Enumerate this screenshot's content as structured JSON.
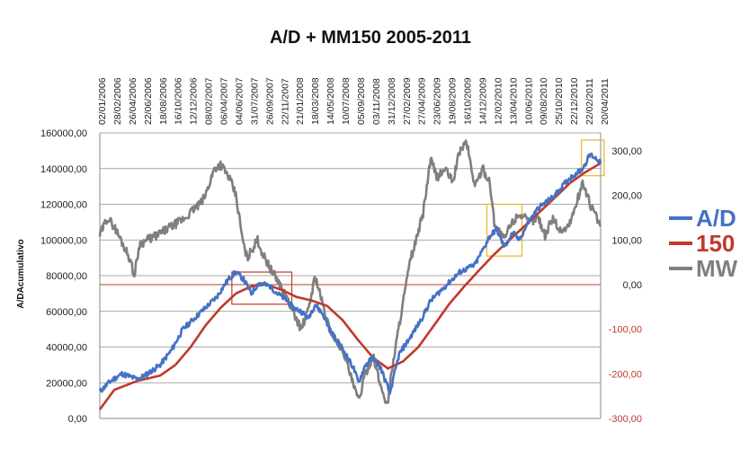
{
  "chart_data": {
    "type": "line",
    "title": "A/D + MM150 2005-2011",
    "ylabel": "A/DAcumulativo",
    "ylim": [
      0,
      160000
    ],
    "y2lim": [
      -300,
      340
    ],
    "yticks": [
      "0,00",
      "20000,00",
      "40000,00",
      "60000,00",
      "80000,00",
      "100000,00",
      "120000,00",
      "140000,00",
      "160000,00"
    ],
    "y2ticks": [
      "-300,00",
      "-200,00",
      "-100,00",
      "0,00",
      "100,00",
      "200,00",
      "300,00"
    ],
    "y2tick_values": [
      -300,
      -200,
      -100,
      0,
      100,
      200,
      300
    ],
    "x_start": "2006-01-02",
    "x_end": "2011-07-01",
    "xticks": [
      "02/01/2006",
      "28/02/2006",
      "26/04/2006",
      "22/06/2006",
      "18/08/2006",
      "16/10/2006",
      "12/12/2006",
      "08/02/2007",
      "06/04/2007",
      "04/06/2007",
      "31/07/2007",
      "26/09/2007",
      "22/11/2007",
      "21/01/2008",
      "18/03/2008",
      "14/05/2008",
      "10/07/2008",
      "05/09/2008",
      "03/11/2008",
      "31/12/2008",
      "27/02/2009",
      "27/04/2009",
      "23/06/2009",
      "19/08/2009",
      "16/10/2009",
      "14/12/2009",
      "12/02/2010",
      "13/04/2010",
      "10/06/2010",
      "09/08/2010",
      "25/10/2010",
      "22/12/2010",
      "22/02/2011",
      "20/04/2011"
    ],
    "grid": true,
    "legend_position": "right",
    "series": [
      {
        "name": "A/D",
        "axis": "left",
        "color": "#4472c4",
        "points": [
          [
            "2006-01-02",
            15000
          ],
          [
            "2006-02-15",
            21000
          ],
          [
            "2006-04-01",
            25000
          ],
          [
            "2006-06-01",
            22000
          ],
          [
            "2006-07-01",
            24000
          ],
          [
            "2006-09-01",
            30000
          ],
          [
            "2006-10-15",
            38000
          ],
          [
            "2006-12-01",
            50000
          ],
          [
            "2007-01-15",
            56000
          ],
          [
            "2007-03-01",
            62000
          ],
          [
            "2007-04-15",
            68000
          ],
          [
            "2007-06-01",
            78000
          ],
          [
            "2007-07-01",
            82000
          ],
          [
            "2007-08-01",
            78000
          ],
          [
            "2007-09-01",
            70000
          ],
          [
            "2007-10-01",
            76000
          ],
          [
            "2007-11-15",
            74000
          ],
          [
            "2007-12-15",
            70000
          ],
          [
            "2008-01-21",
            66000
          ],
          [
            "2008-02-15",
            62000
          ],
          [
            "2008-03-18",
            60000
          ],
          [
            "2008-04-15",
            56000
          ],
          [
            "2008-05-14",
            64000
          ],
          [
            "2008-06-15",
            58000
          ],
          [
            "2008-07-10",
            50000
          ],
          [
            "2008-08-15",
            42000
          ],
          [
            "2008-09-05",
            38000
          ],
          [
            "2008-10-15",
            28000
          ],
          [
            "2008-11-03",
            20000
          ],
          [
            "2008-12-01",
            30000
          ],
          [
            "2008-12-31",
            34000
          ],
          [
            "2009-02-01",
            28000
          ],
          [
            "2009-03-09",
            14000
          ],
          [
            "2009-04-15",
            36000
          ],
          [
            "2009-06-01",
            46000
          ],
          [
            "2009-07-15",
            56000
          ],
          [
            "2009-08-19",
            66000
          ],
          [
            "2009-10-16",
            74000
          ],
          [
            "2009-12-14",
            82000
          ],
          [
            "2010-02-12",
            86000
          ],
          [
            "2010-04-13",
            102000
          ],
          [
            "2010-05-10",
            106000
          ],
          [
            "2010-06-10",
            96000
          ],
          [
            "2010-07-15",
            104000
          ],
          [
            "2010-08-09",
            100000
          ],
          [
            "2010-09-15",
            110000
          ],
          [
            "2010-10-25",
            118000
          ],
          [
            "2010-12-22",
            124000
          ],
          [
            "2011-02-22",
            134000
          ],
          [
            "2011-04-20",
            140000
          ],
          [
            "2011-05-20",
            148000
          ],
          [
            "2011-06-20",
            145000
          ],
          [
            "2011-07-01",
            143000
          ]
        ]
      },
      {
        "name": "150",
        "axis": "left",
        "color": "#c0392b",
        "points": [
          [
            "2006-01-02",
            5000
          ],
          [
            "2006-03-01",
            16000
          ],
          [
            "2006-06-01",
            21000
          ],
          [
            "2006-09-01",
            24000
          ],
          [
            "2006-11-01",
            30000
          ],
          [
            "2007-01-01",
            40000
          ],
          [
            "2007-03-01",
            52000
          ],
          [
            "2007-05-01",
            62000
          ],
          [
            "2007-07-01",
            70000
          ],
          [
            "2007-09-01",
            74000
          ],
          [
            "2007-11-01",
            75000
          ],
          [
            "2008-01-01",
            72000
          ],
          [
            "2008-03-01",
            68000
          ],
          [
            "2008-05-01",
            66000
          ],
          [
            "2008-07-01",
            63000
          ],
          [
            "2008-09-01",
            55000
          ],
          [
            "2008-11-01",
            44000
          ],
          [
            "2009-01-01",
            34000
          ],
          [
            "2009-03-01",
            28000
          ],
          [
            "2009-05-01",
            32000
          ],
          [
            "2009-07-01",
            40000
          ],
          [
            "2009-09-01",
            52000
          ],
          [
            "2009-11-01",
            64000
          ],
          [
            "2010-01-01",
            74000
          ],
          [
            "2010-03-01",
            83000
          ],
          [
            "2010-05-01",
            92000
          ],
          [
            "2010-07-01",
            100000
          ],
          [
            "2010-09-01",
            108000
          ],
          [
            "2010-11-01",
            116000
          ],
          [
            "2011-01-01",
            124000
          ],
          [
            "2011-03-01",
            132000
          ],
          [
            "2011-05-01",
            138000
          ],
          [
            "2011-07-01",
            143000
          ]
        ]
      },
      {
        "name": "MW",
        "axis": "right",
        "color": "#7f7f7f",
        "points": [
          [
            "2006-01-02",
            110
          ],
          [
            "2006-02-01",
            150
          ],
          [
            "2006-03-01",
            130
          ],
          [
            "2006-04-01",
            95
          ],
          [
            "2006-05-01",
            60
          ],
          [
            "2006-05-20",
            20
          ],
          [
            "2006-06-10",
            90
          ],
          [
            "2006-07-10",
            100
          ],
          [
            "2006-08-18",
            110
          ],
          [
            "2006-10-16",
            130
          ],
          [
            "2006-12-12",
            150
          ],
          [
            "2007-01-15",
            170
          ],
          [
            "2007-02-08",
            180
          ],
          [
            "2007-03-01",
            200
          ],
          [
            "2007-04-06",
            260
          ],
          [
            "2007-05-01",
            270
          ],
          [
            "2007-06-04",
            240
          ],
          [
            "2007-07-01",
            200
          ],
          [
            "2007-07-31",
            90
          ],
          [
            "2007-08-15",
            60
          ],
          [
            "2007-09-26",
            100
          ],
          [
            "2007-10-15",
            70
          ],
          [
            "2007-11-22",
            30
          ],
          [
            "2007-12-15",
            10
          ],
          [
            "2008-01-21",
            -30
          ],
          [
            "2008-02-15",
            -60
          ],
          [
            "2008-03-18",
            -100
          ],
          [
            "2008-04-15",
            -60
          ],
          [
            "2008-05-14",
            20
          ],
          [
            "2008-06-15",
            -50
          ],
          [
            "2008-07-10",
            -100
          ],
          [
            "2008-08-01",
            -120
          ],
          [
            "2008-09-05",
            -150
          ],
          [
            "2008-10-10",
            -220
          ],
          [
            "2008-11-03",
            -260
          ],
          [
            "2008-12-01",
            -200
          ],
          [
            "2008-12-31",
            -160
          ],
          [
            "2009-02-01",
            -230
          ],
          [
            "2009-02-27",
            -270
          ],
          [
            "2009-03-20",
            -180
          ],
          [
            "2009-04-27",
            -50
          ],
          [
            "2009-06-01",
            60
          ],
          [
            "2009-06-23",
            100
          ],
          [
            "2009-07-20",
            160
          ],
          [
            "2009-08-19",
            280
          ],
          [
            "2009-09-15",
            240
          ],
          [
            "2009-10-16",
            260
          ],
          [
            "2009-11-15",
            230
          ],
          [
            "2009-12-14",
            300
          ],
          [
            "2010-01-10",
            320
          ],
          [
            "2010-02-12",
            220
          ],
          [
            "2010-03-15",
            260
          ],
          [
            "2010-04-13",
            230
          ],
          [
            "2010-05-01",
            140
          ],
          [
            "2010-06-10",
            100
          ],
          [
            "2010-07-01",
            130
          ],
          [
            "2010-08-09",
            160
          ],
          [
            "2010-09-15",
            140
          ],
          [
            "2010-10-25",
            150
          ],
          [
            "2010-11-20",
            110
          ],
          [
            "2010-12-22",
            150
          ],
          [
            "2011-01-20",
            120
          ],
          [
            "2011-02-22",
            130
          ],
          [
            "2011-03-20",
            170
          ],
          [
            "2011-04-20",
            230
          ],
          [
            "2011-05-20",
            180
          ],
          [
            "2011-06-15",
            150
          ],
          [
            "2011-07-01",
            130
          ]
        ]
      }
    ],
    "reference_line": {
      "axis": "right",
      "value": 0,
      "color": "#c0392b"
    },
    "highlight_boxes": [
      {
        "color": "#c0392b",
        "x_start": "2007-06-15",
        "x_end": "2008-02-10",
        "y_low": 64000,
        "y_high": 82000
      },
      {
        "color": "#e8b820",
        "x_start": "2010-04-01",
        "x_end": "2010-08-20",
        "y_low": 91000,
        "y_high": 120000
      },
      {
        "color": "#e8b820",
        "x_start": "2011-04-15",
        "x_end": "2011-07-15",
        "y_low": 136000,
        "y_high": 156000
      }
    ]
  }
}
